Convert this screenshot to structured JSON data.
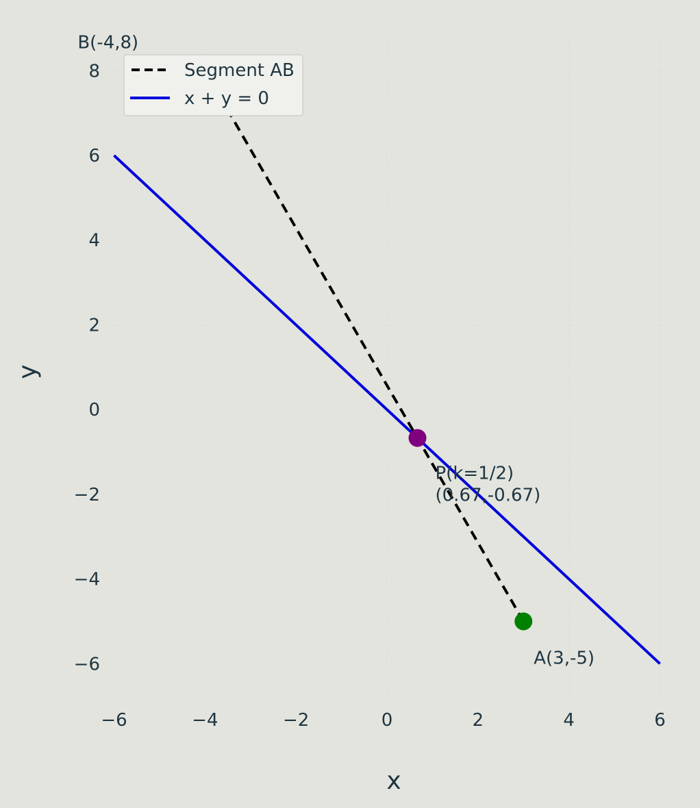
{
  "chart_data": {
    "type": "line",
    "xlabel": "x",
    "ylabel": "y",
    "xlim": [
      -6.7,
      6.7
    ],
    "ylim": [
      -6.9,
      8.7
    ],
    "x_ticks": [
      -6,
      -4,
      -2,
      0,
      2,
      4,
      6
    ],
    "y_ticks": [
      -6,
      -4,
      -2,
      0,
      2,
      4,
      6,
      8
    ],
    "x_tick_labels": [
      "−6",
      "−4",
      "−2",
      "0",
      "2",
      "4",
      "6"
    ],
    "y_tick_labels": [
      "−6",
      "−4",
      "−2",
      "0",
      "2",
      "4",
      "6",
      "8"
    ],
    "grid": true,
    "legend_position": "top-left",
    "series": [
      {
        "name": "Segment AB",
        "style": "dashed",
        "color": "#000000",
        "x": [
          3,
          -4
        ],
        "y": [
          -5,
          8
        ]
      },
      {
        "name": "x + y = 0",
        "style": "solid",
        "color": "#0000dd",
        "x": [
          -6,
          6
        ],
        "y": [
          6,
          -6
        ]
      }
    ],
    "points": [
      {
        "x": -4,
        "y": 8,
        "color": "#f4c2c2",
        "label": "B(-4,8)"
      },
      {
        "x": 3,
        "y": -5,
        "color": "#008000",
        "label": "A(3,-5)"
      },
      {
        "x": 0.67,
        "y": -0.67,
        "color": "#800080",
        "label_line1": "P(k=1/2)",
        "label_line2": "(0.67,-0.67)"
      }
    ]
  }
}
